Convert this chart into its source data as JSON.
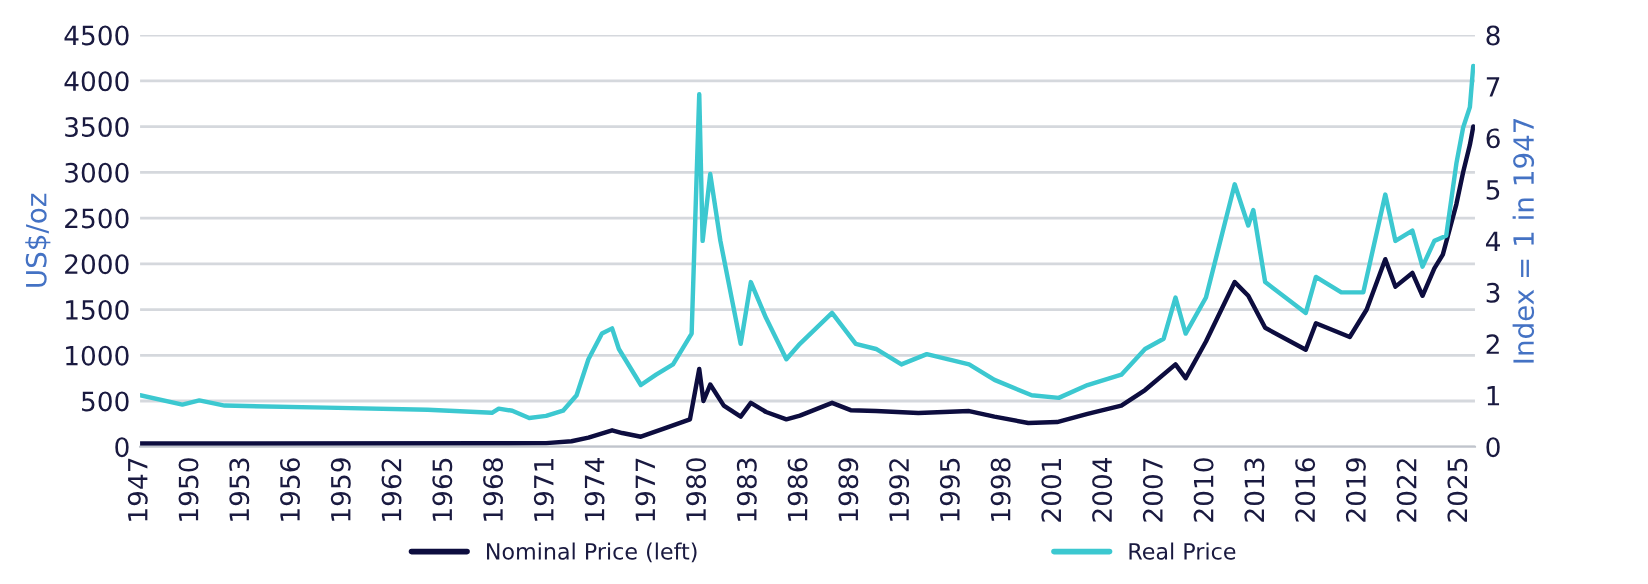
{
  "chart_data": {
    "type": "line",
    "ylabel": "US$/oz",
    "y2label": "Index = 1 in 1947",
    "xlim": [
      1947,
      2025.9
    ],
    "xticks": [
      1947,
      1950,
      1953,
      1956,
      1959,
      1962,
      1965,
      1968,
      1971,
      1974,
      1977,
      1980,
      1983,
      1986,
      1989,
      1992,
      1995,
      1998,
      2001,
      2004,
      2007,
      2010,
      2013,
      2016,
      2019,
      2022,
      2025
    ],
    "ylim": [
      0,
      4500
    ],
    "yticks": [
      0,
      500,
      1000,
      1500,
      2000,
      2500,
      3000,
      3500,
      4000,
      4500
    ],
    "y2lim": [
      0,
      8
    ],
    "y2ticks": [
      0,
      1,
      2,
      3,
      4,
      5,
      6,
      7,
      8
    ],
    "grid": "y",
    "legend": "bottom",
    "series": [
      {
        "name": "Nominal Price (left)",
        "color": "#0d0d3f",
        "x": [
          1947,
          1968,
          1971,
          1972.5,
          1973.5,
          1974.9,
          1975.5,
          1976.6,
          1978,
          1979.5,
          1980.05,
          1980.3,
          1980.7,
          1981.5,
          1982.5,
          1983.1,
          1984,
          1985.2,
          1986,
          1987.9,
          1989,
          1990.5,
          1993,
          1996,
          1997.5,
          1999.5,
          2001.2,
          2003,
          2005,
          2006.4,
          2008.2,
          2008.8,
          2010,
          2011.7,
          2012.5,
          2013.5,
          2015.9,
          2016.5,
          2018.5,
          2019.5,
          2020.6,
          2021.2,
          2022.2,
          2022.8,
          2023.5,
          2024,
          2024.8,
          2025.2,
          2025.6,
          2025.8
        ],
        "values": [
          35,
          38,
          40,
          60,
          100,
          180,
          150,
          110,
          200,
          300,
          850,
          500,
          680,
          450,
          330,
          480,
          380,
          300,
          340,
          480,
          400,
          390,
          370,
          390,
          330,
          260,
          270,
          360,
          450,
          620,
          900,
          750,
          1150,
          1800,
          1650,
          1300,
          1060,
          1350,
          1200,
          1500,
          2050,
          1750,
          1900,
          1650,
          1950,
          2100,
          2650,
          3000,
          3300,
          3500
        ],
        "axis": "y"
      },
      {
        "name": "Real Price",
        "color": "#3cc8d0",
        "x": [
          1947,
          1949.5,
          1950.5,
          1952,
          1958,
          1964,
          1967.8,
          1968.2,
          1969,
          1970,
          1971,
          1972,
          1972.8,
          1973.5,
          1974.3,
          1974.9,
          1975.3,
          1976.6,
          1977.5,
          1978.5,
          1979.6,
          1980.05,
          1980.25,
          1980.7,
          1981.3,
          1982.5,
          1983.1,
          1984,
          1985.2,
          1986,
          1987.9,
          1989.3,
          1990.5,
          1992,
          1993.5,
          1996,
          1997.5,
          1999.7,
          2001.3,
          2003,
          2005,
          2006.4,
          2007.5,
          2008.2,
          2008.8,
          2010,
          2011.7,
          2012.5,
          2012.8,
          2013.5,
          2015.9,
          2016.5,
          2018,
          2019.3,
          2020.6,
          2021.2,
          2022.2,
          2022.8,
          2023.5,
          2024.2,
          2024.8,
          2025.2,
          2025.6,
          2025.8
        ],
        "values": [
          1.0,
          0.82,
          0.9,
          0.8,
          0.76,
          0.72,
          0.66,
          0.74,
          0.7,
          0.56,
          0.6,
          0.7,
          1.0,
          1.7,
          2.2,
          2.3,
          1.9,
          1.2,
          1.4,
          1.6,
          2.2,
          6.85,
          4.0,
          5.3,
          4.0,
          2.0,
          3.2,
          2.5,
          1.7,
          2.0,
          2.6,
          2.0,
          1.9,
          1.6,
          1.8,
          1.6,
          1.3,
          1.0,
          0.95,
          1.2,
          1.4,
          1.9,
          2.1,
          2.9,
          2.2,
          2.9,
          5.1,
          4.3,
          4.6,
          3.2,
          2.6,
          3.3,
          3.0,
          3.0,
          4.9,
          4.0,
          4.2,
          3.5,
          4.0,
          4.1,
          5.5,
          6.2,
          6.6,
          7.4
        ],
        "axis": "y2"
      }
    ]
  }
}
